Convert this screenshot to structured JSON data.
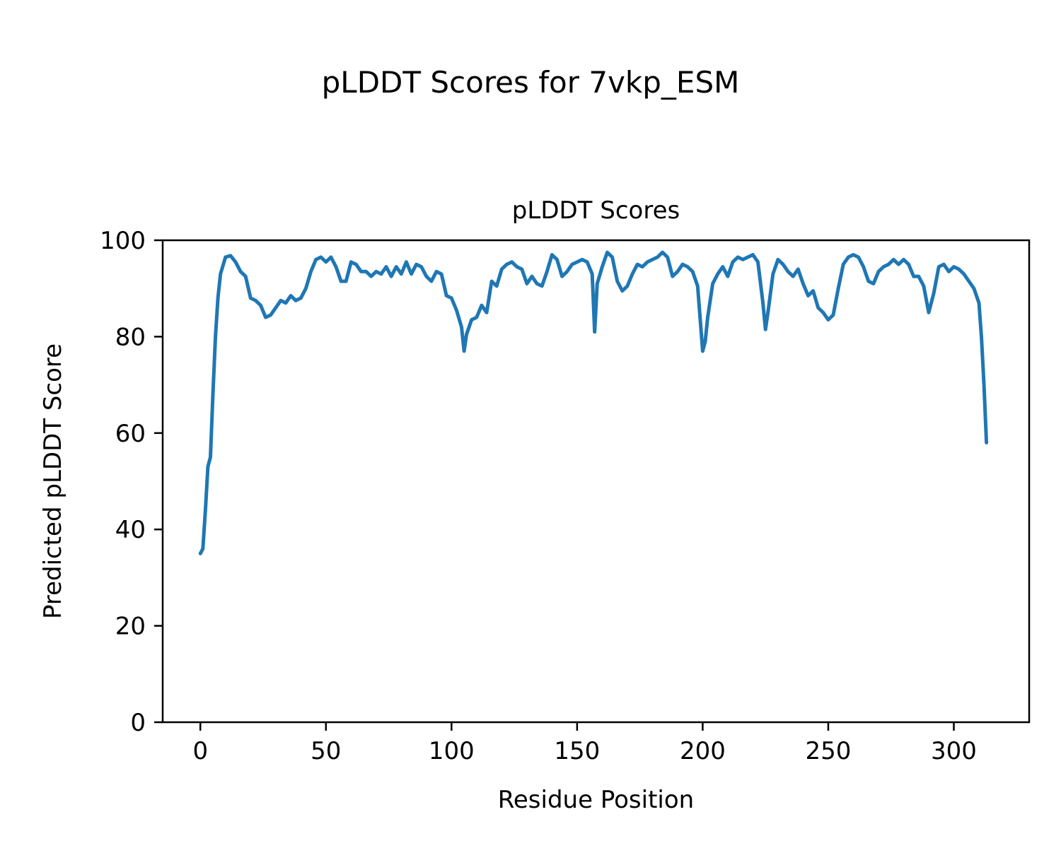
{
  "chart_data": {
    "type": "line",
    "title": "pLDDT Scores for 7vkp_ESM",
    "subtitle": "pLDDT Scores",
    "xlabel": "Residue Position",
    "ylabel": "Predicted pLDDT Score",
    "series_name": "pLDDT",
    "line_color": "#1f77b4",
    "grid": false,
    "legend": "none",
    "xlim": [
      -15,
      330
    ],
    "ylim": [
      0,
      100
    ],
    "xticks": [
      0,
      50,
      100,
      150,
      200,
      250,
      300
    ],
    "yticks": [
      0,
      20,
      40,
      60,
      80,
      100
    ],
    "x": [
      0,
      1,
      2,
      3,
      4,
      5,
      6,
      7,
      8,
      10,
      12,
      14,
      16,
      18,
      20,
      22,
      24,
      26,
      28,
      30,
      32,
      34,
      36,
      38,
      40,
      42,
      44,
      46,
      48,
      50,
      52,
      54,
      56,
      58,
      60,
      62,
      64,
      66,
      68,
      70,
      72,
      74,
      76,
      78,
      80,
      82,
      84,
      86,
      88,
      90,
      92,
      94,
      96,
      98,
      100,
      102,
      104,
      105,
      106,
      108,
      110,
      112,
      114,
      116,
      118,
      120,
      122,
      124,
      126,
      128,
      130,
      132,
      134,
      136,
      138,
      140,
      142,
      144,
      146,
      148,
      150,
      152,
      154,
      156,
      157,
      158,
      160,
      162,
      164,
      166,
      168,
      170,
      172,
      174,
      176,
      178,
      180,
      182,
      184,
      186,
      188,
      190,
      192,
      194,
      196,
      198,
      200,
      201,
      202,
      204,
      206,
      208,
      210,
      212,
      214,
      216,
      218,
      220,
      222,
      224,
      225,
      226,
      228,
      230,
      232,
      234,
      236,
      238,
      240,
      242,
      244,
      246,
      248,
      250,
      252,
      254,
      256,
      258,
      260,
      262,
      264,
      266,
      268,
      270,
      272,
      274,
      276,
      278,
      280,
      282,
      284,
      286,
      288,
      290,
      292,
      294,
      296,
      298,
      300,
      302,
      304,
      306,
      308,
      310,
      311,
      312,
      313
    ],
    "y": [
      35,
      36,
      44,
      53,
      55,
      68,
      80,
      88,
      93,
      96.5,
      96.8,
      95.5,
      93.5,
      92.5,
      88,
      87.5,
      86.5,
      84,
      84.5,
      86,
      87.5,
      87,
      88.5,
      87.5,
      88,
      90,
      93.5,
      96,
      96.5,
      95.5,
      96.5,
      94.5,
      91.5,
      91.5,
      95.5,
      95,
      93.5,
      93.5,
      92.5,
      93.5,
      93,
      94.5,
      92.5,
      94.5,
      93,
      95.5,
      93,
      95,
      94.5,
      92.5,
      91.5,
      93.5,
      93,
      88.5,
      88,
      85.5,
      82,
      77,
      80.5,
      83.5,
      84,
      86.5,
      85,
      91.5,
      90.5,
      94,
      95,
      95.5,
      94.5,
      94,
      91,
      92.5,
      91,
      90.5,
      93.5,
      97,
      96,
      92.5,
      93.5,
      95,
      95.5,
      96,
      95.5,
      93,
      81,
      91,
      94.5,
      97.5,
      96.5,
      91.5,
      89.5,
      90.5,
      93,
      95,
      94.5,
      95.5,
      96,
      96.5,
      97.5,
      96.5,
      92.5,
      93.5,
      95,
      94.5,
      93.5,
      90.5,
      77,
      79,
      84,
      91,
      93,
      94.5,
      92.5,
      95.5,
      96.5,
      96,
      96.5,
      97,
      95.5,
      87,
      81.5,
      85,
      93,
      96,
      95,
      93.5,
      92.5,
      94,
      91,
      88.5,
      89.5,
      86,
      85,
      83.5,
      84.5,
      90,
      95,
      96.5,
      97,
      96.5,
      94.5,
      91.5,
      91,
      93.5,
      94.5,
      95,
      96,
      95,
      96,
      95,
      92.5,
      92.5,
      90.5,
      85,
      89,
      94.5,
      95,
      93.5,
      94.5,
      94,
      93,
      91.5,
      90,
      87,
      80,
      70,
      58
    ]
  }
}
